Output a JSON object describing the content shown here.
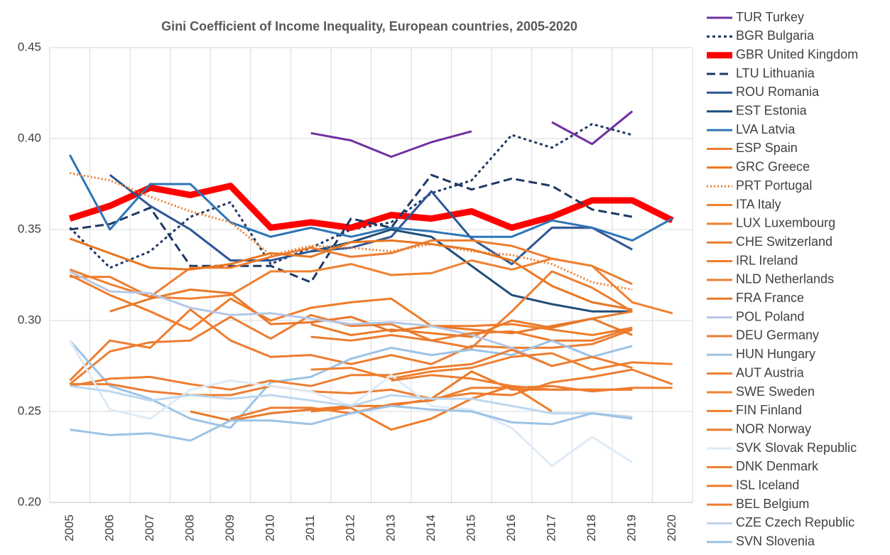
{
  "chart_data": {
    "type": "line",
    "title": "Gini Coefficient of Income Inequality, European countries, 2005-2020",
    "categories": [
      "2005",
      "2006",
      "2007",
      "2008",
      "2009",
      "2010",
      "2011",
      "2012",
      "2013",
      "2014",
      "2015",
      "2016",
      "2017",
      "2018",
      "2019",
      "2020"
    ],
    "ylim": [
      0.2,
      0.45
    ],
    "yticks": [
      {
        "value": 0.2,
        "label": "0.20"
      },
      0.25,
      {
        "value": 0.3,
        "label": "0.30"
      },
      0.35,
      {
        "value": 0.4,
        "label": "0.40"
      },
      0.45
    ],
    "grid": true,
    "series": [
      {
        "name": "TUR Turkey",
        "color": "#7030a0",
        "values": [
          null,
          null,
          null,
          null,
          null,
          null,
          0.403,
          0.399,
          0.39,
          0.398,
          0.404,
          null,
          0.409,
          0.397,
          0.415,
          null
        ]
      },
      {
        "name": "BGR Bulgaria",
        "color": "#1f3864",
        "dash": "4 4",
        "values": [
          0.351,
          0.329,
          0.338,
          0.357,
          0.365,
          0.331,
          0.34,
          0.35,
          0.354,
          0.37,
          0.377,
          0.402,
          0.395,
          0.408,
          0.402,
          null
        ]
      },
      {
        "name": "GBR United Kingdom",
        "color": "#ff0000",
        "width": 9,
        "values": [
          0.356,
          0.363,
          0.373,
          0.369,
          0.374,
          0.351,
          0.354,
          0.351,
          0.358,
          0.356,
          0.36,
          0.351,
          0.357,
          0.366,
          0.366,
          0.355
        ]
      },
      {
        "name": "LTU Lithuania",
        "color": "#1f3864",
        "dash": "12 6",
        "values": [
          0.35,
          0.353,
          0.362,
          0.33,
          0.33,
          0.33,
          0.321,
          0.356,
          0.351,
          0.38,
          0.372,
          0.378,
          0.374,
          0.361,
          0.357,
          null
        ]
      },
      {
        "name": "ROU Romania",
        "color": "#2f5597",
        "values": [
          null,
          0.38,
          0.363,
          0.35,
          0.333,
          0.333,
          0.338,
          0.34,
          0.346,
          0.371,
          0.345,
          0.331,
          0.351,
          0.351,
          0.339,
          null
        ]
      },
      {
        "name": "EST Estonia",
        "color": "#1f4e79",
        "values": [
          null,
          null,
          null,
          null,
          null,
          null,
          0.338,
          0.343,
          0.35,
          0.346,
          0.33,
          0.314,
          0.309,
          0.305,
          0.305,
          null
        ]
      },
      {
        "name": "LVA Latvia",
        "color": "#2e75b6",
        "values": [
          0.391,
          0.35,
          0.375,
          0.375,
          0.354,
          0.346,
          0.351,
          0.346,
          0.351,
          0.349,
          0.346,
          0.346,
          0.355,
          0.351,
          0.344,
          0.356
        ]
      },
      {
        "name": "ESP Spain",
        "color": "#ed7d31",
        "values": [
          0.324,
          0.324,
          0.313,
          0.329,
          0.329,
          0.335,
          0.34,
          0.335,
          0.337,
          0.344,
          0.344,
          0.341,
          0.334,
          0.33,
          0.32,
          null
        ]
      },
      {
        "name": "GRC Greece",
        "color": "#e8761f",
        "values": [
          0.345,
          0.337,
          0.329,
          0.328,
          0.331,
          0.337,
          0.335,
          0.343,
          0.344,
          0.342,
          0.339,
          0.333,
          0.319,
          0.31,
          0.306,
          null
        ]
      },
      {
        "name": "PRT Portugal",
        "color": "#ed7d31",
        "dash": "2 3",
        "values": [
          0.381,
          0.377,
          0.368,
          0.36,
          0.354,
          0.336,
          0.341,
          0.34,
          0.338,
          0.342,
          0.338,
          0.336,
          0.331,
          0.321,
          0.317,
          null
        ]
      },
      {
        "name": "ITA Italy",
        "color": "#f08030",
        "values": [
          0.328,
          0.32,
          0.313,
          0.312,
          0.314,
          0.327,
          0.327,
          0.331,
          0.325,
          0.326,
          0.333,
          0.328,
          0.334,
          0.33,
          0.31,
          0.304
        ]
      },
      {
        "name": "LUX Luxembourg",
        "color": "#ed7d31",
        "values": [
          0.265,
          0.283,
          0.288,
          0.289,
          0.302,
          0.29,
          0.303,
          0.297,
          0.298,
          0.289,
          0.285,
          0.305,
          0.327,
          0.318,
          0.305,
          null
        ]
      },
      {
        "name": "CHE Switzerland",
        "color": "#e97a2a",
        "values": [
          null,
          null,
          null,
          null,
          null,
          null,
          0.298,
          0.292,
          0.295,
          0.293,
          0.291,
          0.3,
          0.296,
          0.301,
          0.305,
          null
        ]
      },
      {
        "name": "IRL Ireland",
        "color": "#f07c28",
        "values": [
          0.325,
          0.314,
          0.305,
          0.295,
          0.312,
          0.3,
          0.307,
          0.31,
          0.312,
          0.297,
          0.297,
          0.298,
          0.295,
          0.292,
          0.296,
          null
        ]
      },
      {
        "name": "NLD Netherlands",
        "color": "#ed7d31",
        "values": [
          0.267,
          0.289,
          0.285,
          0.306,
          0.289,
          0.28,
          0.281,
          0.276,
          0.281,
          0.276,
          0.286,
          0.285,
          0.285,
          0.287,
          0.295,
          null
        ]
      },
      {
        "name": "FRA France",
        "color": "#e8782a",
        "values": [
          null,
          0.305,
          0.312,
          0.317,
          0.315,
          0.298,
          0.299,
          0.302,
          0.294,
          0.297,
          0.295,
          0.293,
          0.297,
          0.301,
          0.292,
          null
        ]
      },
      {
        "name": "POL Poland",
        "color": "#b4c7e7",
        "values": [
          0.327,
          0.316,
          0.315,
          0.307,
          0.303,
          0.304,
          0.301,
          0.298,
          0.299,
          0.297,
          0.292,
          0.285,
          0.275,
          null,
          null,
          null
        ]
      },
      {
        "name": "DEU Germany",
        "color": "#ed7d31",
        "values": [
          null,
          null,
          null,
          null,
          null,
          null,
          0.291,
          0.289,
          0.292,
          0.289,
          0.293,
          0.294,
          0.289,
          0.289,
          0.296,
          null
        ]
      },
      {
        "name": "HUN Hungary",
        "color": "#9dc3e6",
        "values": [
          0.289,
          0.264,
          0.257,
          0.246,
          0.241,
          0.266,
          0.269,
          0.279,
          0.285,
          0.281,
          0.284,
          0.281,
          0.289,
          0.28,
          0.286,
          null
        ]
      },
      {
        "name": "AUT Austria",
        "color": "#ed7d31",
        "values": [
          0.264,
          0.268,
          0.269,
          0.265,
          0.262,
          0.267,
          0.264,
          0.27,
          0.27,
          0.274,
          0.276,
          0.284,
          0.275,
          0.28,
          0.274,
          null
        ]
      },
      {
        "name": "SWE Sweden",
        "color": "#f08030",
        "values": [
          null,
          null,
          null,
          null,
          null,
          null,
          0.273,
          0.274,
          0.268,
          0.272,
          0.274,
          0.28,
          0.282,
          0.273,
          0.277,
          0.276
        ]
      },
      {
        "name": "FIN Finland",
        "color": "#ed7d31",
        "values": [
          0.265,
          0.265,
          0.261,
          0.259,
          0.259,
          0.264,
          0.261,
          0.26,
          0.262,
          0.257,
          0.26,
          0.259,
          0.266,
          0.269,
          0.273,
          0.265
        ]
      },
      {
        "name": "NOR Norway",
        "color": "#e97a2a",
        "values": [
          null,
          null,
          null,
          0.25,
          0.245,
          0.249,
          0.251,
          0.253,
          0.253,
          0.257,
          0.272,
          0.262,
          0.262,
          0.262,
          0.262,
          null
        ]
      },
      {
        "name": "SVK Slovak Republic",
        "color": "#deebf7",
        "values": [
          0.289,
          0.251,
          0.246,
          0.262,
          0.267,
          0.264,
          0.261,
          0.253,
          0.27,
          0.253,
          0.251,
          0.241,
          0.22,
          0.236,
          0.222,
          null
        ]
      },
      {
        "name": "DNK Denmark",
        "color": "#ed7d31",
        "values": [
          null,
          null,
          null,
          null,
          0.246,
          0.252,
          0.252,
          0.249,
          0.254,
          0.256,
          0.263,
          0.263,
          0.264,
          0.261,
          0.263,
          0.263
        ]
      },
      {
        "name": "ISL Iceland",
        "color": "#f07c28",
        "values": [
          null,
          null,
          null,
          null,
          null,
          null,
          0.25,
          0.252,
          0.24,
          0.246,
          0.257,
          0.264,
          0.25,
          null,
          null,
          null
        ]
      },
      {
        "name": "BEL Belgium",
        "color": "#ed7d31",
        "values": [
          null,
          null,
          null,
          null,
          null,
          null,
          null,
          null,
          0.267,
          0.27,
          0.268,
          0.264,
          0.262,
          0.262,
          0.262,
          null
        ]
      },
      {
        "name": "CZE Czech Republic",
        "color": "#bdd7ee",
        "values": [
          0.264,
          0.261,
          0.256,
          0.259,
          0.257,
          0.259,
          0.256,
          0.253,
          0.259,
          0.257,
          0.257,
          0.253,
          0.249,
          0.249,
          0.247,
          null
        ]
      },
      {
        "name": "SVN Slovenia",
        "color": "#9dc3e6",
        "values": [
          0.24,
          0.237,
          0.238,
          0.234,
          0.245,
          0.245,
          0.243,
          0.249,
          0.253,
          0.251,
          0.25,
          0.244,
          0.243,
          0.249,
          0.246,
          null
        ]
      }
    ]
  }
}
